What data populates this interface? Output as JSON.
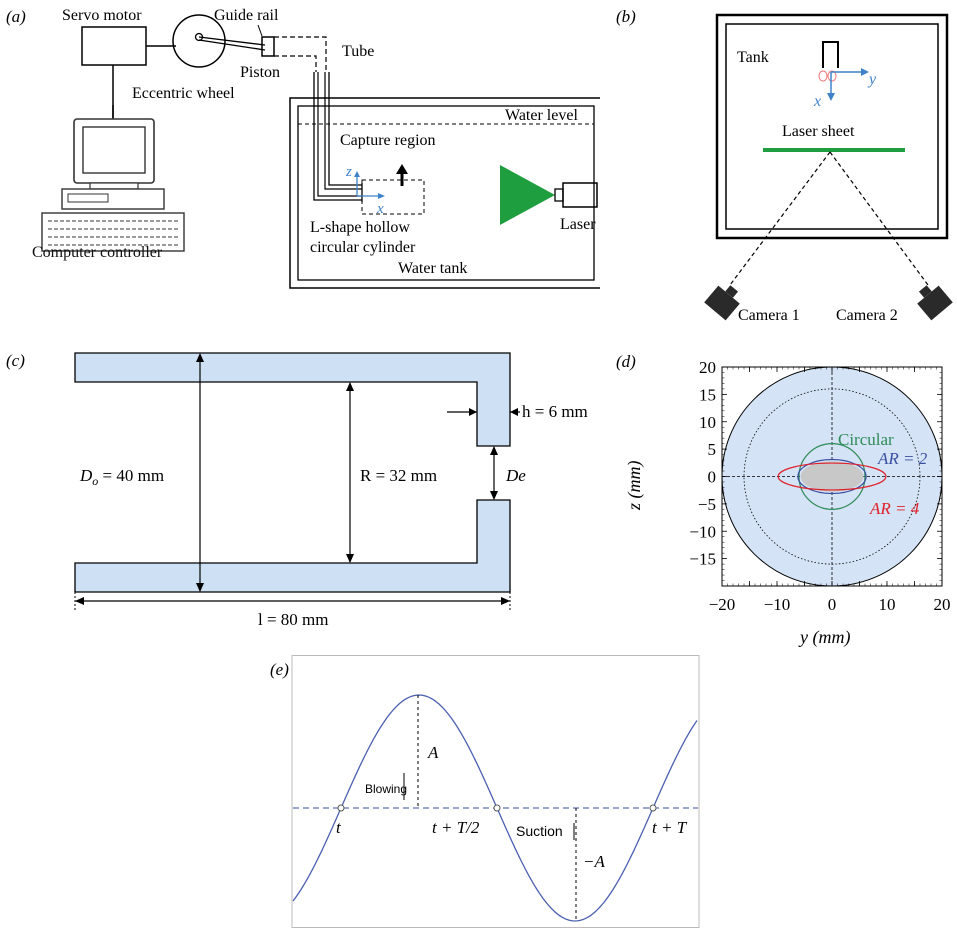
{
  "panel_a": {
    "label": "(a)",
    "servo_motor": "Servo motor",
    "guide_rail": "Guide rail",
    "piston": "Piston",
    "tube": "Tube",
    "eccentric_wheel": "Eccentric wheel",
    "water_level": "Water level",
    "capture_region": "Capture region",
    "axis_z": "z",
    "axis_x": "x",
    "cylinder_line1": "L-shape hollow",
    "cylinder_line2": "circular cylinder",
    "water_tank": "Water tank",
    "laser": "Laser",
    "computer_controller": "Computer controller"
  },
  "panel_b": {
    "label": "(b)",
    "tank": "Tank",
    "axis_y": "y",
    "axis_x": "x",
    "laser_sheet": "Laser sheet",
    "camera1": "Camera 1",
    "camera2": "Camera 2"
  },
  "panel_c": {
    "label": "(c)",
    "h_label": "h = 6 mm",
    "do_label": "D_o = 40 mm",
    "do_main": "D",
    "do_sub": "o",
    "do_rest": " = 40 mm",
    "r_label": "R = 32 mm",
    "de_label": "De",
    "l_label": "l = 80 mm"
  },
  "panel_d": {
    "label": "(d)",
    "xlabel": "y (mm)",
    "ylabel": "z (mm)",
    "circular": "Circular",
    "ar2": "AR = 2",
    "ar4": "AR = 4",
    "colors": {
      "circular": "#2e8b57",
      "ar2": "#3a4fa0",
      "ar4": "#e0202a",
      "fill": "#d4e4f6"
    }
  },
  "panel_e": {
    "label": "(e)",
    "amp_pos": "A",
    "amp_neg": "−A",
    "blowing": "Blowing",
    "suction": "Suction",
    "t0": "t",
    "t_half": "t + T/2",
    "t_full": "t + T"
  },
  "chart_data": {
    "type": "line",
    "xlabel": "y (mm)",
    "ylabel": "z (mm)",
    "xlim": [
      -20,
      20
    ],
    "ylim": [
      -20,
      20
    ],
    "x_ticks": [
      "−20",
      "−10",
      "0",
      "10",
      "20"
    ],
    "y_ticks": [
      "20",
      "15",
      "10",
      "5",
      "0",
      "−5",
      "−10",
      "−15"
    ],
    "grid": false,
    "series": [
      {
        "name": "Circular",
        "shape": "circle",
        "semi_axis_y": 6,
        "semi_axis_z": 6
      },
      {
        "name": "AR = 2",
        "shape": "ellipse",
        "semi_axis_y": 6.2,
        "semi_axis_z": 3.1
      },
      {
        "name": "AR = 4",
        "shape": "ellipse",
        "semi_axis_y": 9.8,
        "semi_axis_z": 2.45
      }
    ]
  }
}
